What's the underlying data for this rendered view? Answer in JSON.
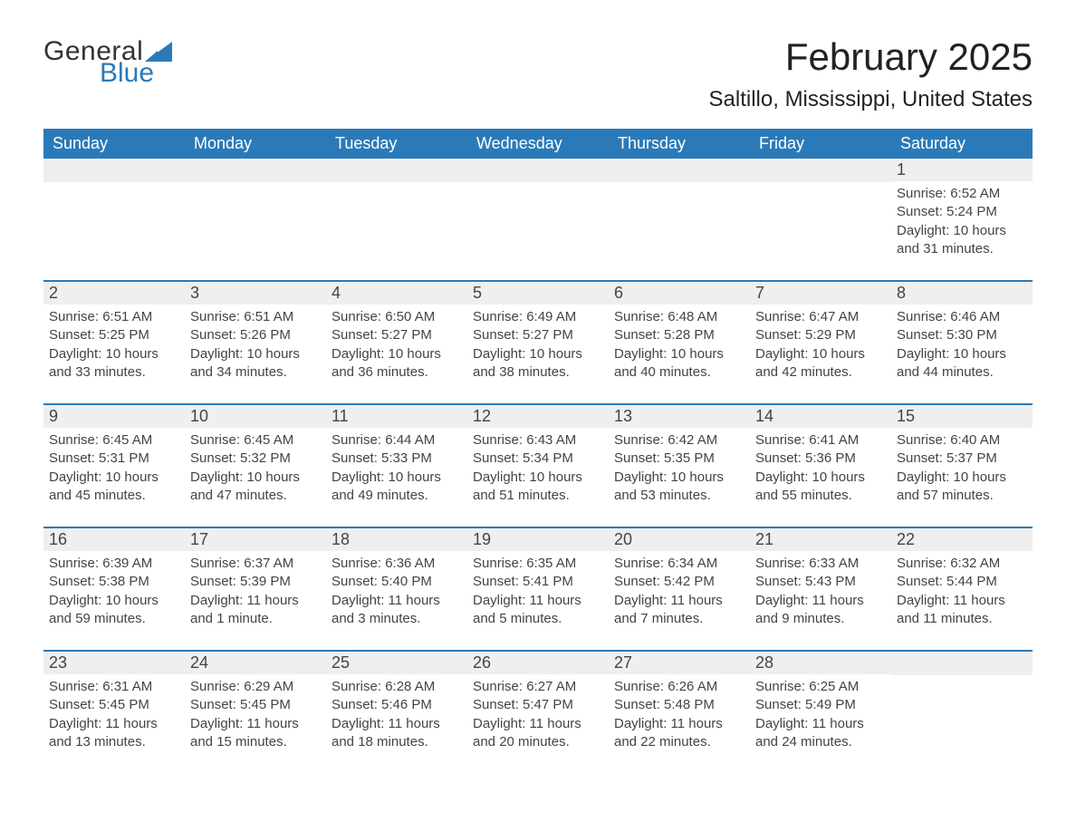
{
  "logo": {
    "word1": "General",
    "word2": "Blue",
    "sail_color": "#2a7ab9"
  },
  "title": "February 2025",
  "location": "Saltillo, Mississippi, United States",
  "colors": {
    "header_bg": "#2a7ab9",
    "header_text": "#ffffff",
    "daynum_bg": "#efefef",
    "row_divider": "#2a7ab9",
    "body_text": "#333333"
  },
  "daysOfWeek": [
    "Sunday",
    "Monday",
    "Tuesday",
    "Wednesday",
    "Thursday",
    "Friday",
    "Saturday"
  ],
  "weeks": [
    [
      null,
      null,
      null,
      null,
      null,
      null,
      {
        "n": 1,
        "sunrise": "6:52 AM",
        "sunset": "5:24 PM",
        "daylight": "10 hours and 31 minutes."
      }
    ],
    [
      {
        "n": 2,
        "sunrise": "6:51 AM",
        "sunset": "5:25 PM",
        "daylight": "10 hours and 33 minutes."
      },
      {
        "n": 3,
        "sunrise": "6:51 AM",
        "sunset": "5:26 PM",
        "daylight": "10 hours and 34 minutes."
      },
      {
        "n": 4,
        "sunrise": "6:50 AM",
        "sunset": "5:27 PM",
        "daylight": "10 hours and 36 minutes."
      },
      {
        "n": 5,
        "sunrise": "6:49 AM",
        "sunset": "5:27 PM",
        "daylight": "10 hours and 38 minutes."
      },
      {
        "n": 6,
        "sunrise": "6:48 AM",
        "sunset": "5:28 PM",
        "daylight": "10 hours and 40 minutes."
      },
      {
        "n": 7,
        "sunrise": "6:47 AM",
        "sunset": "5:29 PM",
        "daylight": "10 hours and 42 minutes."
      },
      {
        "n": 8,
        "sunrise": "6:46 AM",
        "sunset": "5:30 PM",
        "daylight": "10 hours and 44 minutes."
      }
    ],
    [
      {
        "n": 9,
        "sunrise": "6:45 AM",
        "sunset": "5:31 PM",
        "daylight": "10 hours and 45 minutes."
      },
      {
        "n": 10,
        "sunrise": "6:45 AM",
        "sunset": "5:32 PM",
        "daylight": "10 hours and 47 minutes."
      },
      {
        "n": 11,
        "sunrise": "6:44 AM",
        "sunset": "5:33 PM",
        "daylight": "10 hours and 49 minutes."
      },
      {
        "n": 12,
        "sunrise": "6:43 AM",
        "sunset": "5:34 PM",
        "daylight": "10 hours and 51 minutes."
      },
      {
        "n": 13,
        "sunrise": "6:42 AM",
        "sunset": "5:35 PM",
        "daylight": "10 hours and 53 minutes."
      },
      {
        "n": 14,
        "sunrise": "6:41 AM",
        "sunset": "5:36 PM",
        "daylight": "10 hours and 55 minutes."
      },
      {
        "n": 15,
        "sunrise": "6:40 AM",
        "sunset": "5:37 PM",
        "daylight": "10 hours and 57 minutes."
      }
    ],
    [
      {
        "n": 16,
        "sunrise": "6:39 AM",
        "sunset": "5:38 PM",
        "daylight": "10 hours and 59 minutes."
      },
      {
        "n": 17,
        "sunrise": "6:37 AM",
        "sunset": "5:39 PM",
        "daylight": "11 hours and 1 minute."
      },
      {
        "n": 18,
        "sunrise": "6:36 AM",
        "sunset": "5:40 PM",
        "daylight": "11 hours and 3 minutes."
      },
      {
        "n": 19,
        "sunrise": "6:35 AM",
        "sunset": "5:41 PM",
        "daylight": "11 hours and 5 minutes."
      },
      {
        "n": 20,
        "sunrise": "6:34 AM",
        "sunset": "5:42 PM",
        "daylight": "11 hours and 7 minutes."
      },
      {
        "n": 21,
        "sunrise": "6:33 AM",
        "sunset": "5:43 PM",
        "daylight": "11 hours and 9 minutes."
      },
      {
        "n": 22,
        "sunrise": "6:32 AM",
        "sunset": "5:44 PM",
        "daylight": "11 hours and 11 minutes."
      }
    ],
    [
      {
        "n": 23,
        "sunrise": "6:31 AM",
        "sunset": "5:45 PM",
        "daylight": "11 hours and 13 minutes."
      },
      {
        "n": 24,
        "sunrise": "6:29 AM",
        "sunset": "5:45 PM",
        "daylight": "11 hours and 15 minutes."
      },
      {
        "n": 25,
        "sunrise": "6:28 AM",
        "sunset": "5:46 PM",
        "daylight": "11 hours and 18 minutes."
      },
      {
        "n": 26,
        "sunrise": "6:27 AM",
        "sunset": "5:47 PM",
        "daylight": "11 hours and 20 minutes."
      },
      {
        "n": 27,
        "sunrise": "6:26 AM",
        "sunset": "5:48 PM",
        "daylight": "11 hours and 22 minutes."
      },
      {
        "n": 28,
        "sunrise": "6:25 AM",
        "sunset": "5:49 PM",
        "daylight": "11 hours and 24 minutes."
      },
      null
    ]
  ],
  "labels": {
    "sunrise": "Sunrise:",
    "sunset": "Sunset:",
    "daylight": "Daylight:"
  }
}
